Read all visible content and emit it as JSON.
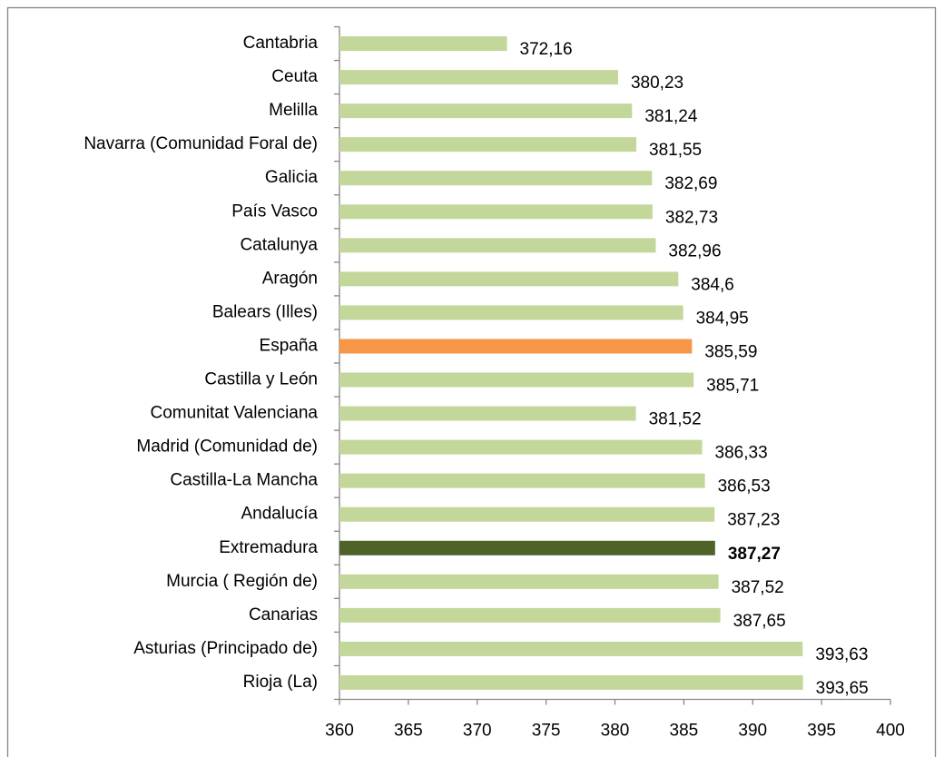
{
  "chart_data": {
    "type": "bar",
    "orientation": "horizontal",
    "categories": [
      "Cantabria",
      "Ceuta",
      "Melilla",
      "Navarra (Comunidad Foral de)",
      "Galicia",
      "País Vasco",
      "Catalunya",
      "Aragón",
      "Balears (Illes)",
      "España",
      "Castilla y León",
      "Comunitat Valenciana",
      "Madrid (Comunidad de)",
      "Castilla-La Mancha",
      "Andalucía",
      "Extremadura",
      "Murcia ( Región de)",
      "Canarias",
      "Asturias (Principado de)",
      "Rioja (La)"
    ],
    "values": [
      372.16,
      380.23,
      381.24,
      381.55,
      382.69,
      382.73,
      382.96,
      384.6,
      384.95,
      385.59,
      385.71,
      381.52,
      386.33,
      386.53,
      387.23,
      387.27,
      387.52,
      387.65,
      393.63,
      393.65
    ],
    "value_labels": [
      "372,16",
      "380,23",
      "381,24",
      "381,55",
      "382,69",
      "382,73",
      "382,96",
      "384,6",
      "384,95",
      "385,59",
      "385,71",
      "381,52",
      "386,33",
      "386,53",
      "387,23",
      "387,27",
      "387,52",
      "387,65",
      "393,63",
      "393,65"
    ],
    "colors": [
      "#c4d79b",
      "#c4d79b",
      "#c4d79b",
      "#c4d79b",
      "#c4d79b",
      "#c4d79b",
      "#c4d79b",
      "#c4d79b",
      "#c4d79b",
      "#f79646",
      "#c4d79b",
      "#c4d79b",
      "#c4d79b",
      "#c4d79b",
      "#c4d79b",
      "#4f6228",
      "#c4d79b",
      "#c4d79b",
      "#c4d79b",
      "#c4d79b"
    ],
    "bold_label_index": 15,
    "xlim": [
      360,
      400
    ],
    "xticks": [
      360,
      365,
      370,
      375,
      380,
      385,
      390,
      395,
      400
    ],
    "grid": false
  }
}
